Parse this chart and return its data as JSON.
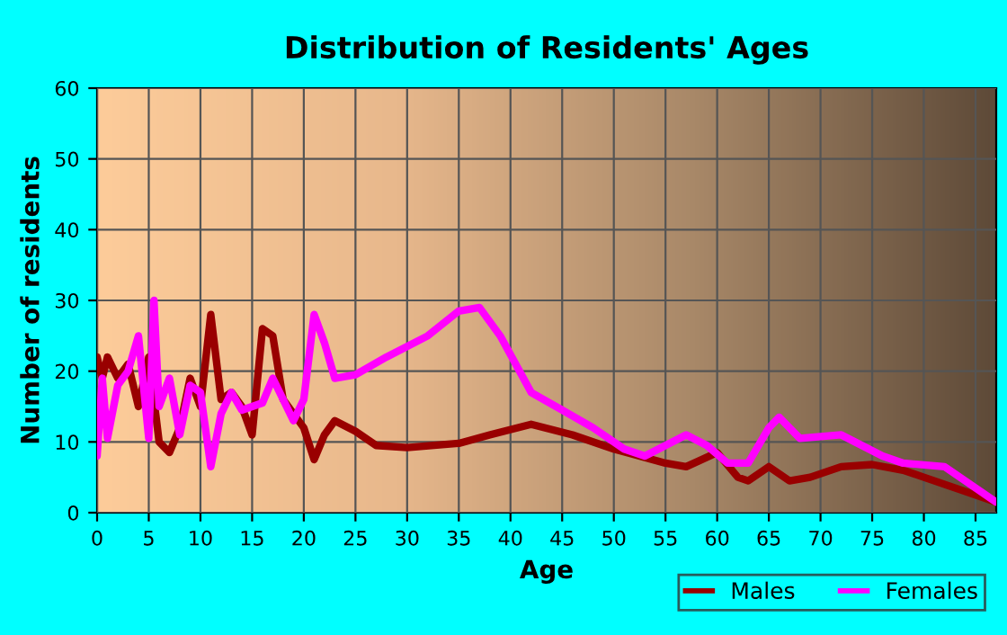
{
  "chart_data": {
    "type": "line",
    "title": "Distribution of Residents' Ages",
    "xlabel": "Age",
    "ylabel": "Number of residents",
    "xlim": [
      0,
      87
    ],
    "xticks": [
      0,
      5,
      10,
      15,
      20,
      25,
      30,
      35,
      40,
      45,
      50,
      55,
      60,
      65,
      70,
      75,
      80,
      85
    ],
    "ylim": [
      0,
      60
    ],
    "yticks": [
      0,
      10,
      20,
      30,
      40,
      50,
      60
    ],
    "grid": true,
    "legend": "bottom right",
    "marker": "none",
    "line_style": "solid",
    "series": [
      {
        "name": "Males",
        "color": "#990000",
        "x": [
          0,
          0.5,
          1,
          2,
          3,
          4,
          5,
          6,
          7,
          8,
          9,
          10,
          11,
          12,
          13,
          14,
          15,
          16,
          17,
          18,
          19,
          20,
          21,
          22,
          23,
          25,
          27,
          30,
          35,
          38,
          42,
          46,
          50,
          55,
          57,
          60,
          62,
          63,
          65,
          67,
          69,
          72,
          75,
          78,
          80,
          84,
          87
        ],
        "values": [
          22,
          19,
          22,
          19,
          21,
          15,
          22,
          10,
          8.5,
          12,
          19,
          15,
          28,
          16,
          17,
          15,
          11,
          26,
          25,
          16,
          14,
          12,
          7.5,
          11,
          13,
          11.5,
          9.5,
          9.2,
          9.8,
          11,
          12.5,
          11,
          9,
          7,
          6.5,
          8.5,
          5,
          4.5,
          6.5,
          4.5,
          5,
          6.5,
          6.8,
          6,
          5,
          3,
          1.5
        ]
      },
      {
        "name": "Females",
        "color": "#ff00ff",
        "x": [
          0,
          0.5,
          1,
          2,
          3,
          4,
          5,
          5.5,
          6,
          7,
          8,
          9,
          10,
          11,
          12,
          13,
          14,
          15,
          16,
          17,
          18,
          19,
          20,
          21,
          22,
          23,
          25,
          28,
          32,
          35,
          37,
          39,
          42,
          45,
          48,
          51,
          53,
          55,
          57,
          59,
          61,
          63,
          65,
          66,
          68,
          72,
          76,
          78,
          82,
          84,
          87
        ],
        "values": [
          8,
          19,
          10.5,
          18,
          20,
          25,
          10.5,
          30,
          15,
          19,
          11,
          18,
          17,
          6.5,
          14,
          17,
          14.5,
          15,
          15.5,
          19,
          16,
          13,
          16,
          28,
          24,
          19,
          19.5,
          22,
          25,
          28.5,
          29,
          25,
          17,
          14.5,
          12,
          9,
          8,
          9.5,
          11,
          9.5,
          7,
          7,
          12,
          13.5,
          10.5,
          11,
          8,
          7,
          6.5,
          4.5,
          1.5
        ]
      }
    ]
  }
}
